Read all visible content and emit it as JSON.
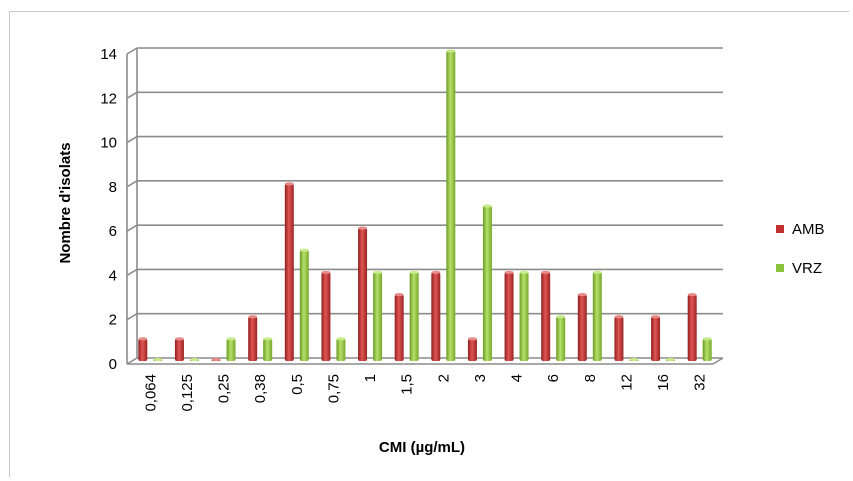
{
  "chart_data": {
    "type": "bar",
    "title": "",
    "xlabel": "CMI (µg/mL)",
    "ylabel": "Nombre d'isolats",
    "ylim": [
      0,
      14
    ],
    "yticks": [
      "0",
      "2",
      "4",
      "6",
      "8",
      "10",
      "12",
      "14"
    ],
    "grid": true,
    "legend_position": "right",
    "categories": [
      "0,064",
      "0,125",
      "0,25",
      "0,38",
      "0,5",
      "0,75",
      "1",
      "1,5",
      "2",
      "3",
      "4",
      "6",
      "8",
      "12",
      "16",
      "32"
    ],
    "series": [
      {
        "name": "AMB",
        "color": "#c0302f",
        "values": [
          1,
          1,
          0,
          2,
          8,
          4,
          6,
          3,
          4,
          1,
          4,
          4,
          3,
          2,
          2,
          3
        ]
      },
      {
        "name": "VRZ",
        "color": "#8cc33c",
        "values": [
          0,
          0,
          1,
          1,
          5,
          1,
          4,
          4,
          14,
          7,
          4,
          2,
          4,
          0,
          0,
          1
        ]
      }
    ]
  }
}
